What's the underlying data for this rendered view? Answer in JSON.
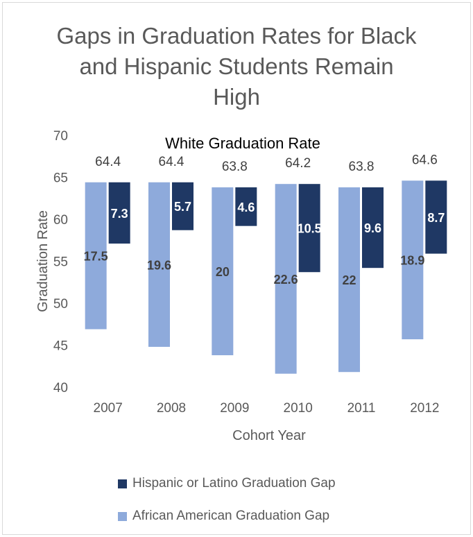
{
  "chart_data": {
    "type": "bar",
    "title_lines": [
      "Gaps in Graduation Rates for Black",
      "and Hispanic Students Remain",
      "High"
    ],
    "xlabel": "Cohort Year",
    "ylabel": "Graduation Rate",
    "ylim": [
      40,
      70
    ],
    "yticks": [
      "40",
      "45",
      "50",
      "55",
      "60",
      "65",
      "70"
    ],
    "categories": [
      "2007",
      "2008",
      "2009",
      "2010",
      "2011",
      "2012"
    ],
    "annotation": "White Graduation Rate",
    "white_rate": [
      64.4,
      64.4,
      63.8,
      64.2,
      63.8,
      64.6
    ],
    "white_rate_labels": [
      "64.4",
      "64.4",
      "63.8",
      "64.2",
      "63.8",
      "64.6"
    ],
    "series": [
      {
        "name": "African American Graduation Gap",
        "color": "#8eaadb",
        "values": [
          17.5,
          19.6,
          20,
          22.6,
          22,
          18.9
        ],
        "labels": [
          "17.5",
          "19.6",
          "20",
          "22.6",
          "22",
          "18.9"
        ]
      },
      {
        "name": "Hispanic or Latino Graduation Gap",
        "color": "#1f3864",
        "values": [
          7.3,
          5.7,
          4.6,
          10.5,
          9.6,
          8.7
        ],
        "labels": [
          "7.3",
          "5.7",
          "4.6",
          "10.5",
          "9.6",
          "8.7"
        ]
      }
    ],
    "legend_position": "bottom",
    "legend_order": [
      1,
      0
    ]
  }
}
